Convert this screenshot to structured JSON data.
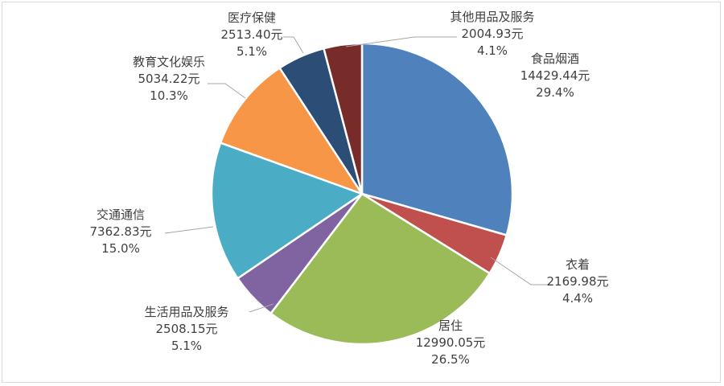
{
  "chart_data": {
    "type": "pie",
    "title": "",
    "slices": [
      {
        "name": "食品烟酒",
        "value_label": "14429.44元",
        "percent_label": "29.4%",
        "value": 14429.44,
        "percent": 29.4,
        "color": "#4F81BD"
      },
      {
        "name": "衣着",
        "value_label": "2169.98元",
        "percent_label": "4.4%",
        "value": 2169.98,
        "percent": 4.4,
        "color": "#C0504D"
      },
      {
        "name": "居住",
        "value_label": "12990.05元",
        "percent_label": "26.5%",
        "value": 12990.05,
        "percent": 26.5,
        "color": "#9BBB59"
      },
      {
        "name": "生活用品及服务",
        "value_label": "2508.15元",
        "percent_label": "5.1%",
        "value": 2508.15,
        "percent": 5.1,
        "color": "#8064A2"
      },
      {
        "name": "交通通信",
        "value_label": "7362.83元",
        "percent_label": "15.0%",
        "value": 7362.83,
        "percent": 15.0,
        "color": "#4BACC6"
      },
      {
        "name": "教育文化娱乐",
        "value_label": "5034.22元",
        "percent_label": "10.3%",
        "value": 5034.22,
        "percent": 10.3,
        "color": "#F79646"
      },
      {
        "name": "医疗保健",
        "value_label": "2513.40元",
        "percent_label": "5.1%",
        "value": 2513.4,
        "percent": 5.1,
        "color": "#2C4D75"
      },
      {
        "name": "其他用品及服务",
        "value_label": "2004.93元",
        "percent_label": "4.1%",
        "value": 2004.93,
        "percent": 4.1,
        "color": "#772C2A"
      }
    ]
  }
}
